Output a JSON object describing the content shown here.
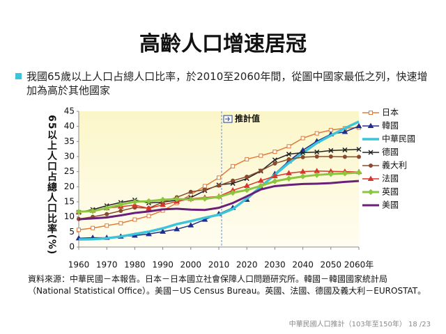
{
  "slide_title": "高齡人口增速居冠",
  "bullet": "我國65歲以上人口占總人口比率，於2010至2060年間，從圖中國家最低之列，快速增加為高於其他國家",
  "source": "資料來源：中華民國－本報告。日本－日本國立社會保障人口問題研究所。韓國－韓國國家統計局（National Statistical Office）。美國－US Census Bureau。英國、法國、德國及義大利－EUROSTAT。",
  "footer": "中華民國人口推計（103年至150年） 18 /23",
  "chart_data": {
    "type": "line",
    "y_label": "65以上人口占總人口比率(%)",
    "annotation": {
      "text": "推計值",
      "x": 2011
    },
    "x": [
      1960,
      1965,
      1970,
      1975,
      1980,
      1985,
      1990,
      1995,
      2000,
      2005,
      2010,
      2015,
      2020,
      2025,
      2030,
      2035,
      2040,
      2045,
      2050,
      2055,
      2060
    ],
    "xlim": [
      1960,
      2060
    ],
    "xticks": [
      1960,
      1970,
      1980,
      1990,
      2000,
      2010,
      2020,
      2030,
      2040,
      2050,
      {
        "value": 2060,
        "label": "2060年"
      }
    ],
    "ylim": [
      0,
      45
    ],
    "yticks": [
      0,
      5,
      10,
      15,
      20,
      25,
      30,
      35,
      40,
      45
    ],
    "grid": false,
    "legend": "right",
    "series": [
      {
        "name": "日本",
        "color": "#e07b39",
        "marker": "square",
        "width": 1.5,
        "values": [
          5.7,
          6.3,
          7.1,
          7.9,
          9.1,
          10.3,
          12.1,
          14.6,
          17.4,
          20.2,
          23.0,
          26.8,
          29.1,
          30.3,
          31.6,
          33.4,
          36.1,
          37.7,
          38.8,
          39.4,
          39.6
        ]
      },
      {
        "name": "韓國",
        "color": "#1f2f8f",
        "marker": "triangle",
        "width": 1.5,
        "values": [
          2.9,
          3.1,
          3.1,
          3.5,
          3.8,
          4.3,
          5.1,
          5.9,
          7.2,
          9.1,
          11.0,
          13.0,
          15.7,
          19.8,
          24.3,
          28.5,
          32.1,
          35.1,
          37.4,
          38.2,
          40.1
        ]
      },
      {
        "name": "中華民國",
        "color": "#3cc4d8",
        "marker": "none",
        "width": 3.5,
        "values": [
          2.5,
          2.6,
          2.9,
          3.5,
          4.3,
          5.1,
          6.2,
          7.6,
          8.6,
          9.7,
          10.7,
          12.6,
          16.1,
          20.0,
          24.0,
          27.9,
          31.2,
          34.5,
          37.0,
          39.4,
          41.6
        ]
      },
      {
        "name": "德國",
        "color": "#222222",
        "marker": "x",
        "width": 1.5,
        "values": [
          11.5,
          12.4,
          13.7,
          14.8,
          15.6,
          14.6,
          14.9,
          15.5,
          16.4,
          18.7,
          20.6,
          21.1,
          22.7,
          25.2,
          28.9,
          30.8,
          31.3,
          31.5,
          32.0,
          32.2,
          32.4
        ]
      },
      {
        "name": "義大利",
        "color": "#8b4a2b",
        "marker": "circle",
        "width": 1.5,
        "values": [
          9.3,
          10.0,
          10.9,
          12.0,
          13.1,
          12.9,
          14.9,
          16.5,
          18.3,
          19.0,
          20.4,
          22.0,
          23.3,
          25.3,
          27.7,
          29.1,
          29.8,
          30.0,
          30.0,
          29.9,
          29.9
        ]
      },
      {
        "name": "法國",
        "color": "#d9342b",
        "marker": "triangle",
        "width": 1.5,
        "values": [
          11.6,
          12.1,
          12.9,
          13.4,
          13.9,
          12.8,
          14.0,
          15.1,
          16.0,
          16.4,
          16.8,
          18.8,
          20.3,
          22.0,
          23.5,
          24.5,
          25.0,
          25.2,
          25.1,
          25.0,
          24.9
        ]
      },
      {
        "name": "英國",
        "color": "#8cc63f",
        "marker": "diamond",
        "width": 3,
        "values": [
          11.7,
          11.9,
          12.9,
          14.1,
          15.0,
          15.2,
          15.7,
          15.9,
          15.8,
          16.0,
          16.6,
          18.0,
          18.9,
          20.3,
          21.8,
          22.7,
          23.4,
          23.9,
          24.2,
          24.4,
          24.7
        ]
      },
      {
        "name": "美國",
        "color": "#6a1f7a",
        "marker": "none",
        "width": 3,
        "values": [
          9.2,
          9.5,
          9.8,
          10.5,
          11.3,
          11.8,
          12.5,
          12.7,
          12.4,
          12.3,
          13.0,
          14.6,
          16.8,
          19.1,
          20.2,
          20.6,
          20.9,
          21.0,
          21.2,
          21.6,
          21.9
        ]
      }
    ]
  }
}
